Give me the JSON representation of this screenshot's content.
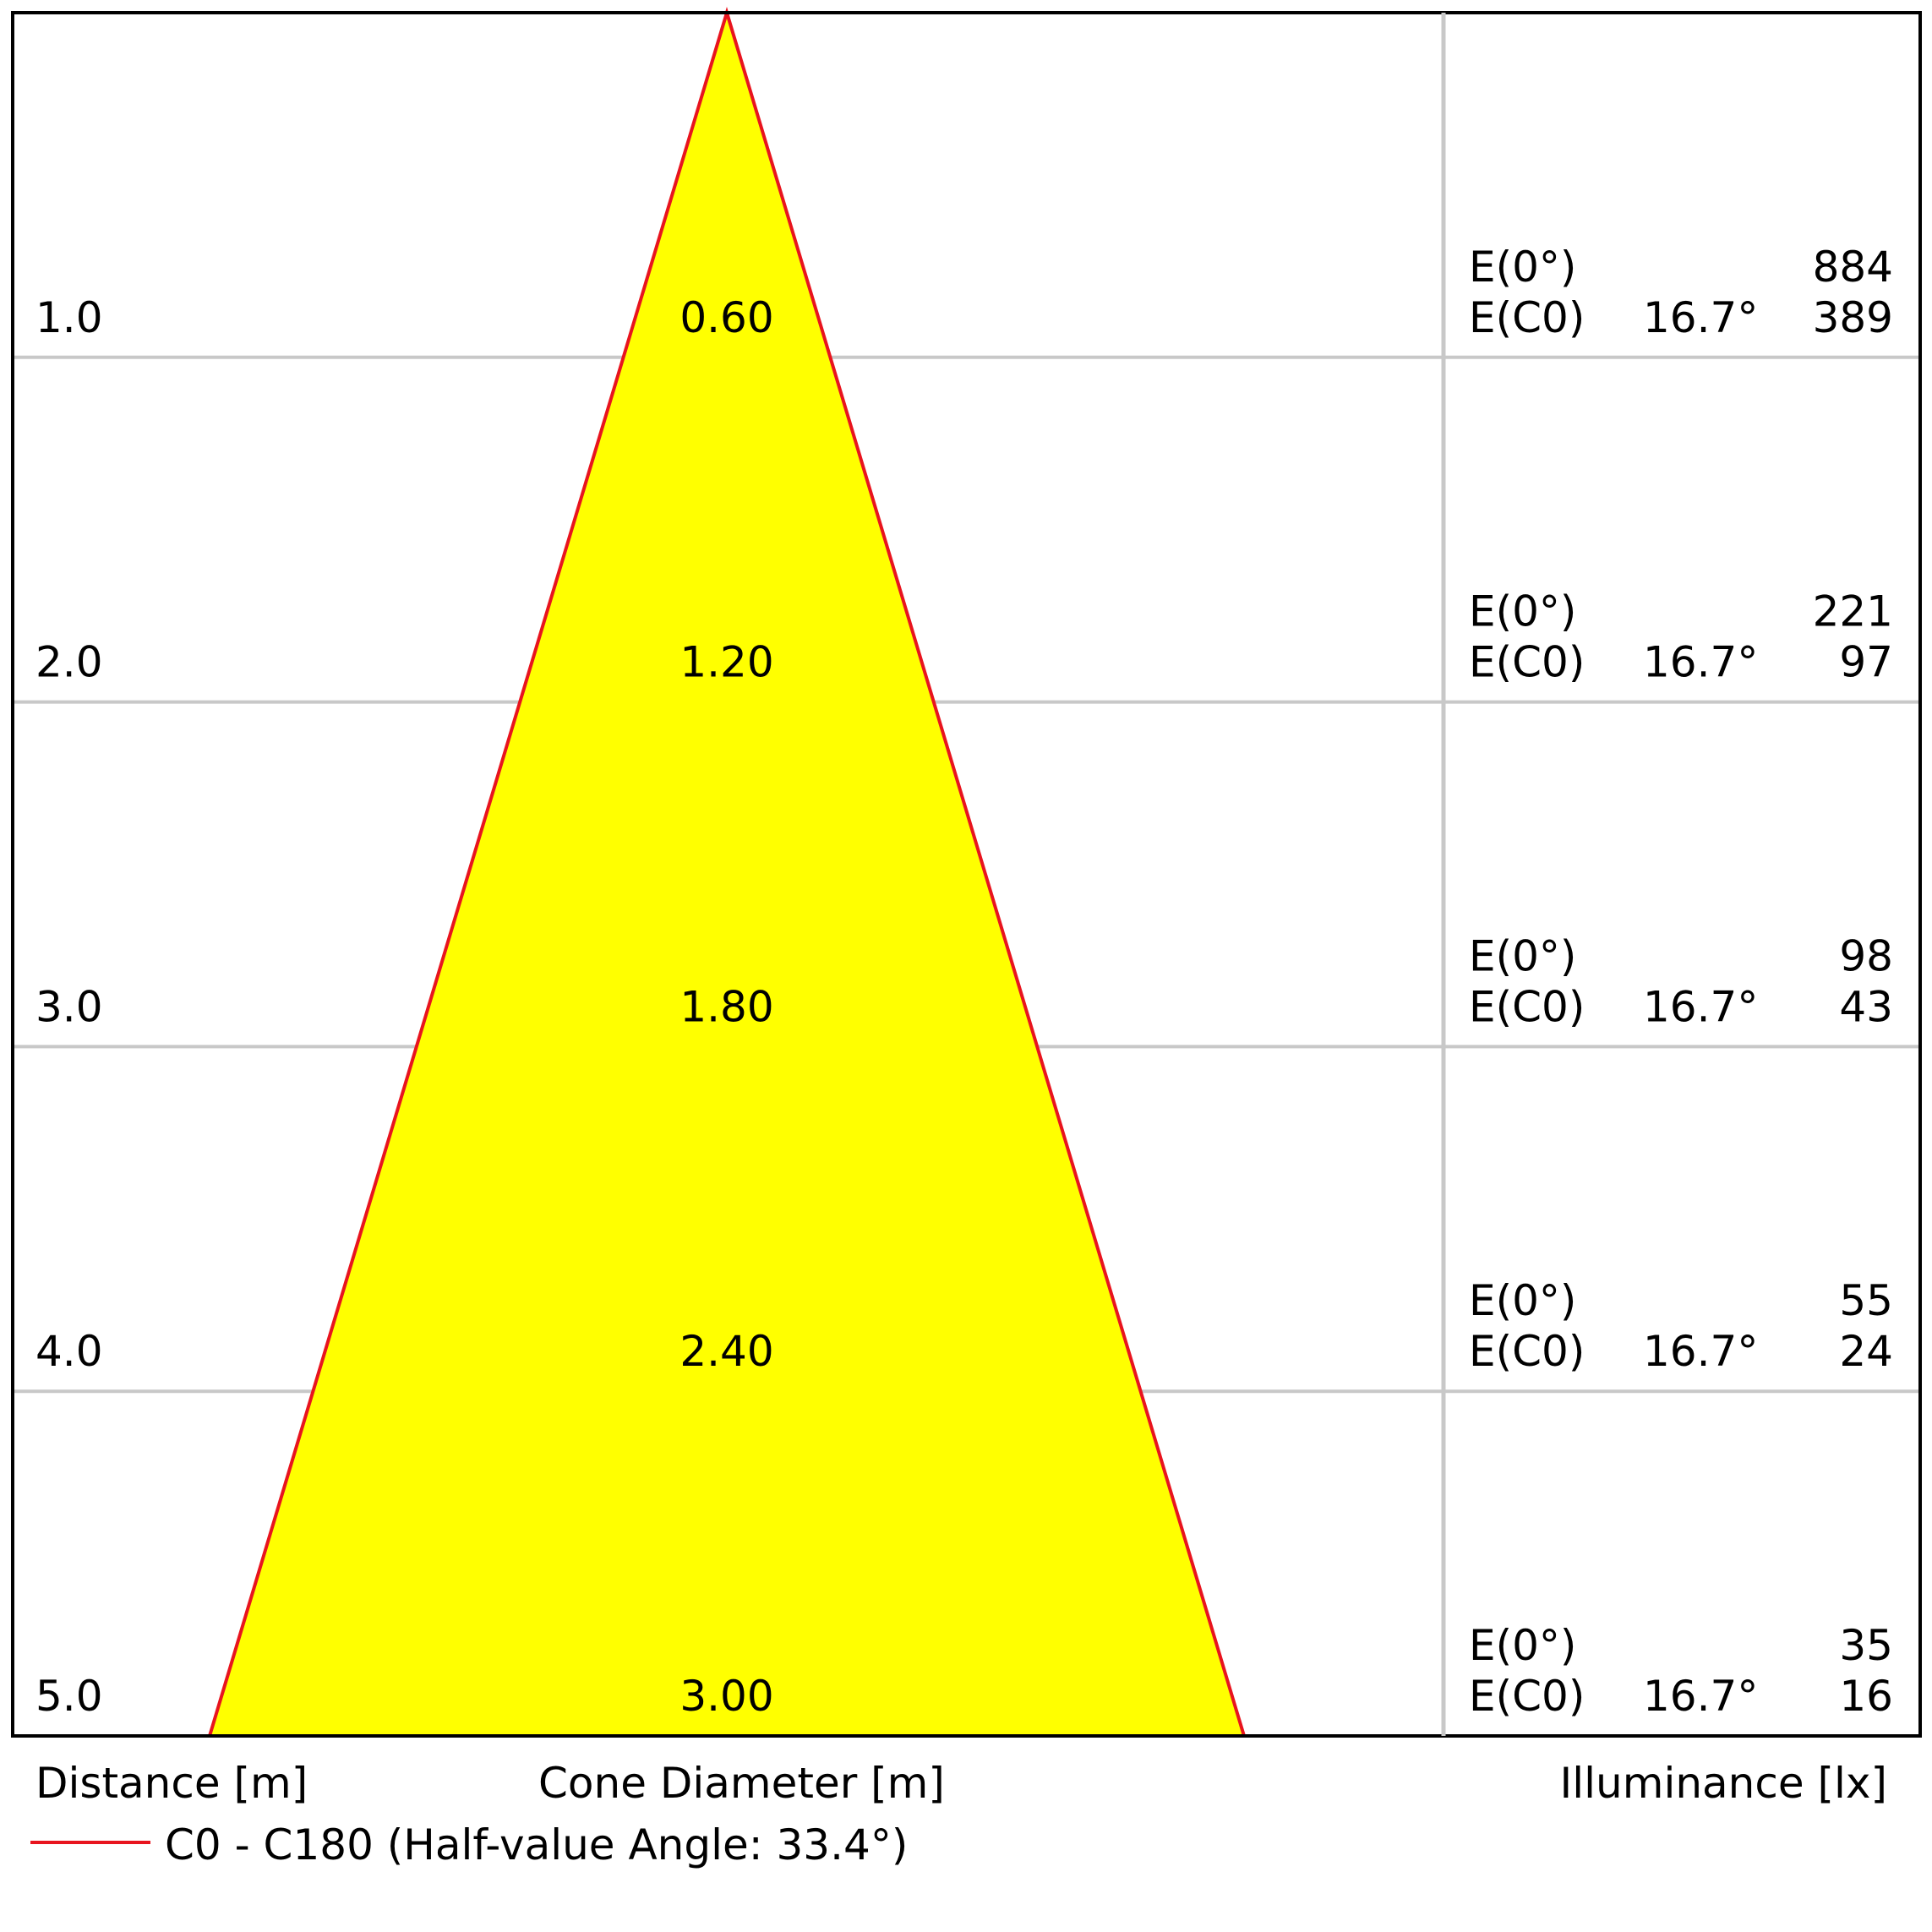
{
  "chart_data": {
    "type": "area",
    "distance_label": "Distance [m]",
    "diameter_label": "Cone Diameter [m]",
    "illuminance_label": "Illuminance [lx]",
    "distance_max": 5.0,
    "half_angle_label": "16.7°",
    "e0_label": "E(0°)",
    "ec0_label": "E(C0)",
    "rows": [
      {
        "distance": "1.0",
        "diameter": "0.60",
        "e0": "884",
        "ec0": "389"
      },
      {
        "distance": "2.0",
        "diameter": "1.20",
        "e0": "221",
        "ec0": "97"
      },
      {
        "distance": "3.0",
        "diameter": "1.80",
        "e0": "98",
        "ec0": "43"
      },
      {
        "distance": "4.0",
        "diameter": "2.40",
        "e0": "55",
        "ec0": "24"
      },
      {
        "distance": "5.0",
        "diameter": "3.00",
        "e0": "35",
        "ec0": "16"
      }
    ],
    "legend": {
      "label": "C0 - C180 (Half-value Angle: 33.4°)"
    },
    "colors": {
      "cone_fill": "#ffff00",
      "cone_stroke": "#e8141e",
      "grid": "#c8c8c8",
      "frame": "#000000"
    }
  }
}
